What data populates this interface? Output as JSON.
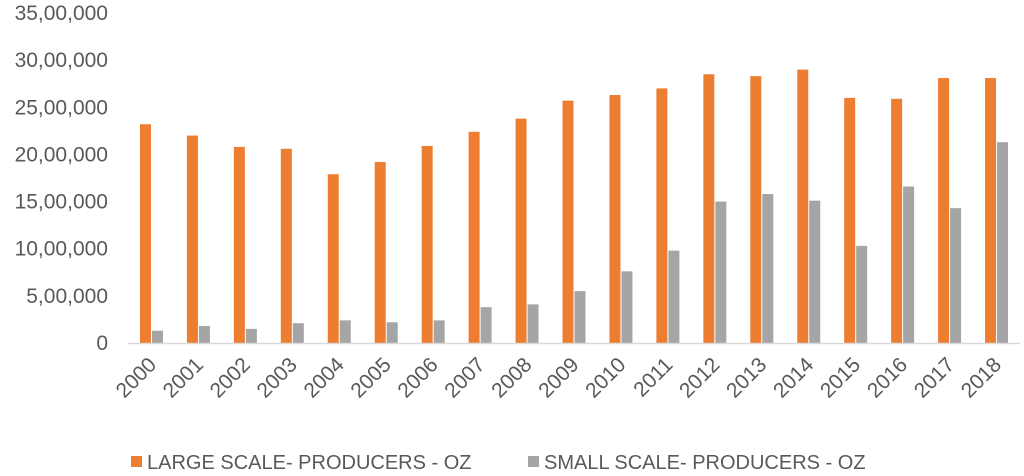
{
  "colors": {
    "large": "#ED7D31",
    "small": "#A5A5A5",
    "axis": "#D9D9D9",
    "text": "#595959"
  },
  "chart_data": {
    "type": "bar",
    "title": "",
    "xlabel": "",
    "ylabel": "",
    "ylim": [
      0,
      3500000
    ],
    "yticks": [
      0,
      500000,
      1000000,
      1500000,
      2000000,
      2500000,
      3000000,
      3500000
    ],
    "ytick_labels": [
      "0",
      "5,00,000",
      "10,00,000",
      "15,00,000",
      "20,00,000",
      "25,00,000",
      "30,00,000",
      "35,00,000"
    ],
    "grid": false,
    "legend_position": "bottom",
    "categories": [
      "2000",
      "2001",
      "2002",
      "2003",
      "2004",
      "2005",
      "2006",
      "2007",
      "2008",
      "2009",
      "2010",
      "2011",
      "2012",
      "2013",
      "2014",
      "2015",
      "2016",
      "2017",
      "2018"
    ],
    "series": [
      {
        "name": "LARGE SCALE- PRODUCERS - OZ",
        "values": [
          2320000,
          2200000,
          2080000,
          2060000,
          1790000,
          1920000,
          2090000,
          2240000,
          2380000,
          2570000,
          2630000,
          2700000,
          2850000,
          2830000,
          2900000,
          2600000,
          2590000,
          2810000,
          2810000
        ]
      },
      {
        "name": "SMALL SCALE- PRODUCERS - OZ",
        "values": [
          130000,
          180000,
          150000,
          210000,
          240000,
          220000,
          240000,
          380000,
          410000,
          550000,
          760000,
          980000,
          1500000,
          1580000,
          1510000,
          1030000,
          1660000,
          1430000,
          2130000
        ]
      }
    ]
  }
}
